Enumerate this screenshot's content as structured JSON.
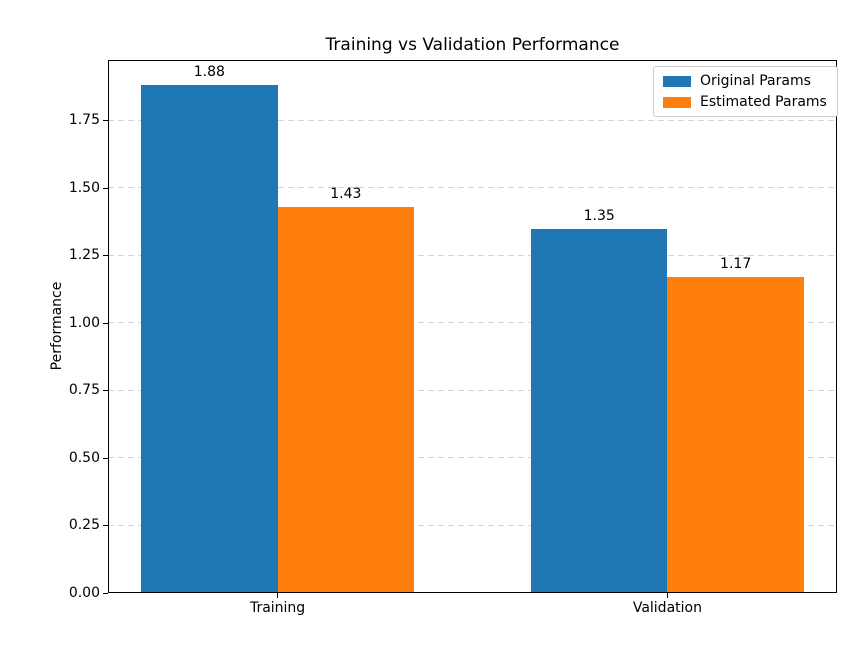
{
  "chart_data": {
    "type": "bar",
    "title": "Training vs Validation Performance",
    "xlabel": "",
    "ylabel": "Performance",
    "categories": [
      "Training",
      "Validation"
    ],
    "series": [
      {
        "name": "Original Params",
        "color": "#1f77b4",
        "values": [
          1.88,
          1.35
        ]
      },
      {
        "name": "Estimated Params",
        "color": "#ff7f0e",
        "values": [
          1.43,
          1.17
        ]
      }
    ],
    "bar_value_labels": [
      [
        "1.88",
        "1.35"
      ],
      [
        "1.43",
        "1.17"
      ]
    ],
    "ytick_labels": [
      "0.00",
      "0.25",
      "0.50",
      "0.75",
      "1.00",
      "1.25",
      "1.50",
      "1.75"
    ],
    "ytick_values": [
      0,
      0.25,
      0.5,
      0.75,
      1.0,
      1.25,
      1.5,
      1.75
    ],
    "ylim": [
      0,
      1.974
    ],
    "xlim": [
      -0.435,
      1.435
    ],
    "group_positions": [
      0,
      1
    ],
    "bar_width_data_units": 0.35,
    "grid": "horizontal-dashed",
    "gridline_color": "#d4d4d4",
    "legend_position": "upper-right",
    "background_color": "#ffffff",
    "text_color": "#000000"
  }
}
